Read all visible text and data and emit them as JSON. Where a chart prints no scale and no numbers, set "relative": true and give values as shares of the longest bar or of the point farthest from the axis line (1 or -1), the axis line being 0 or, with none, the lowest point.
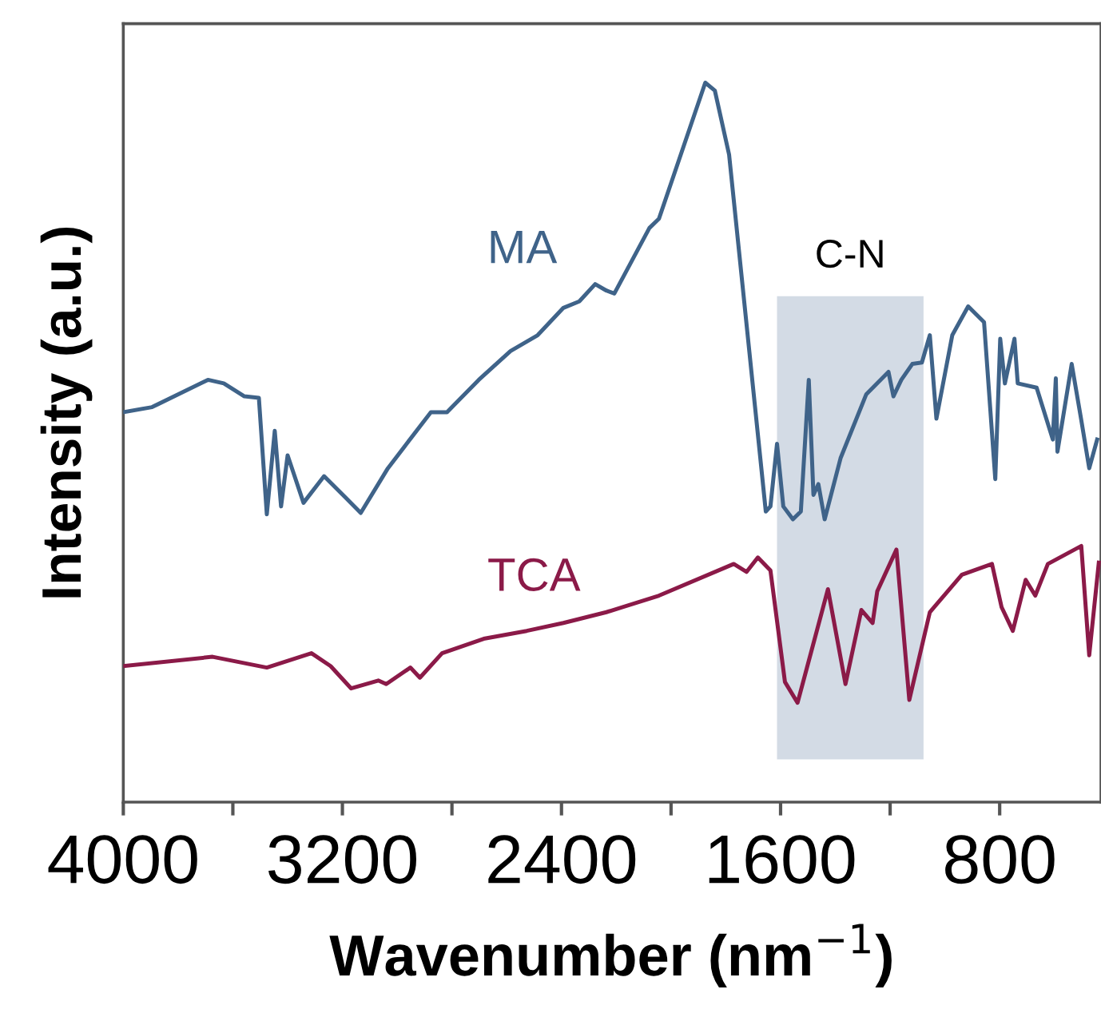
{
  "chart_data": {
    "type": "line",
    "relative": true,
    "xlabel": "Wavenumber (nm$^{−1}$)",
    "ylabel": "Intensity (a.u.)",
    "xlim": [
      4000,
      430
    ],
    "xticks": [
      4000,
      {
        "value": 3600,
        "label": null
      },
      3200,
      {
        "value": 2800,
        "label": null
      },
      2400,
      {
        "value": 2000,
        "label": null
      },
      1600,
      {
        "value": 1200,
        "label": null
      },
      800
    ],
    "tick_labels": "x",
    "grid": false,
    "legend": false,
    "line_style": "solid",
    "marker": "none",
    "bands": [
      {
        "axis": "x",
        "from": 1613,
        "to": 1078,
        "label": "C-N",
        "color": "#d3dbe5"
      }
    ],
    "series": [
      {
        "name": "MA",
        "color": "#3f6389",
        "x": [
          4000,
          3895,
          3691,
          3633,
          3558,
          3505,
          3476,
          3447,
          3424,
          3400,
          3342,
          3267,
          3185,
          3133,
          3034,
          2877,
          2818,
          2702,
          2586,
          2487,
          2393,
          2335,
          2277,
          2236,
          2207,
          2079,
          2044,
          1875,
          1840,
          1788,
          1654,
          1637,
          1613,
          1590,
          1555,
          1526,
          1497,
          1480,
          1462,
          1439,
          1381,
          1287,
          1206,
          1188,
          1159,
          1119,
          1084,
          1055,
          1031,
          973,
          915,
          857,
          816,
          798,
          781,
          746,
          734,
          665,
          606,
          595,
          589,
          537,
          502,
          473,
          444
        ],
        "values": [
          0.542,
          0.549,
          0.587,
          0.582,
          0.564,
          0.562,
          0.4,
          0.516,
          0.411,
          0.482,
          0.416,
          0.453,
          0.422,
          0.402,
          0.464,
          0.542,
          0.542,
          0.587,
          0.627,
          0.649,
          0.687,
          0.696,
          0.72,
          0.711,
          0.707,
          0.798,
          0.811,
          1.0,
          0.989,
          0.9,
          0.404,
          0.411,
          0.498,
          0.411,
          0.393,
          0.404,
          0.587,
          0.427,
          0.442,
          0.393,
          0.478,
          0.567,
          0.598,
          0.564,
          0.587,
          0.609,
          0.611,
          0.649,
          0.533,
          0.649,
          0.689,
          0.667,
          0.449,
          0.644,
          0.582,
          0.644,
          0.582,
          0.576,
          0.504,
          0.589,
          0.487,
          0.609,
          0.531,
          0.464,
          0.504
        ]
      },
      {
        "name": "TCA",
        "color": "#8b1a48",
        "x": [
          4000,
          3674,
          3476,
          3313,
          3243,
          3168,
          3069,
          3040,
          2952,
          2917,
          2836,
          2684,
          2527,
          2393,
          2236,
          2044,
          1771,
          1724,
          1683,
          1637,
          1584,
          1538,
          1427,
          1363,
          1305,
          1264,
          1247,
          1177,
          1130,
          1055,
          938,
          828,
          793,
          752,
          705,
          670,
          624,
          502,
          473,
          438
        ],
        "values": [
          0.189,
          0.202,
          0.187,
          0.207,
          0.189,
          0.158,
          0.169,
          0.164,
          0.187,
          0.173,
          0.207,
          0.227,
          0.238,
          0.249,
          0.264,
          0.287,
          0.331,
          0.32,
          0.34,
          0.322,
          0.167,
          0.138,
          0.296,
          0.164,
          0.267,
          0.249,
          0.293,
          0.351,
          0.142,
          0.264,
          0.316,
          0.331,
          0.271,
          0.238,
          0.309,
          0.287,
          0.331,
          0.356,
          0.204,
          0.333
        ]
      }
    ]
  }
}
